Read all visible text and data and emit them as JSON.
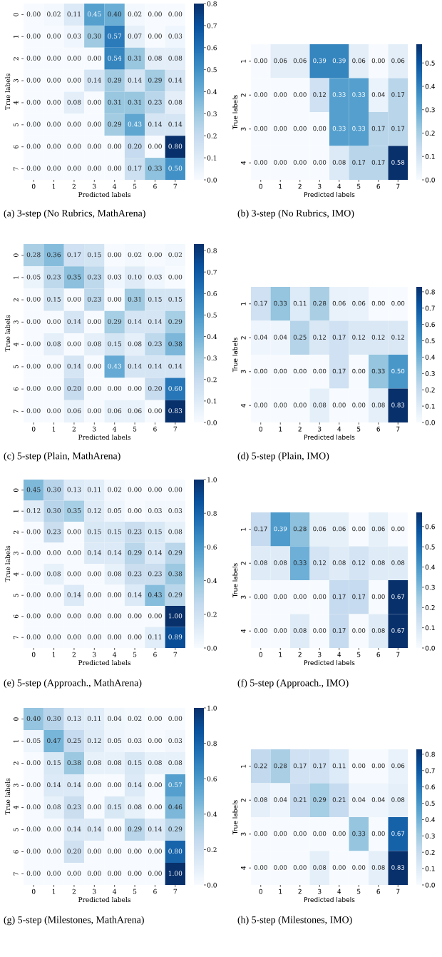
{
  "chart_data": [
    {
      "type": "heatmap",
      "xlabel": "Predicted labels",
      "ylabel": "True labels",
      "categories": [
        "0",
        "1",
        "2",
        "3",
        "4",
        "5",
        "6",
        "7"
      ],
      "y_categories": [
        "0",
        "1",
        "2",
        "3",
        "4",
        "5",
        "6",
        "7"
      ],
      "cells": [
        [
          0,
          0.02,
          0.11,
          0.45,
          0.4,
          0.02,
          0,
          0
        ],
        [
          0,
          0,
          0.03,
          0.3,
          0.57,
          0.07,
          0,
          0.03
        ],
        [
          0,
          0,
          0,
          0,
          0.54,
          0.31,
          0.08,
          0.08
        ],
        [
          0,
          0,
          0,
          0.14,
          0.29,
          0.14,
          0.29,
          0.14
        ],
        [
          0,
          0,
          0.08,
          0,
          0.31,
          0.31,
          0.23,
          0.08
        ],
        [
          0,
          0,
          0,
          0,
          0.29,
          0.43,
          0.14,
          0.14
        ],
        [
          0,
          0,
          0,
          0,
          0,
          0.2,
          0,
          0.8
        ],
        [
          0,
          0,
          0,
          0,
          0,
          0.17,
          0.33,
          0.5
        ]
      ],
      "cell_labels": [
        [
          "0.00",
          "0.02",
          "0.11",
          "0.45",
          "0.40",
          "0.02",
          "0.00",
          "0.00"
        ],
        [
          "0.00",
          "0.00",
          "0.03",
          "0.30",
          "0.57",
          "0.07",
          "0.00",
          "0.03"
        ],
        [
          "0.00",
          "0.00",
          "0.00",
          "0.00",
          "0.54",
          "0.31",
          "0.08",
          "0.08"
        ],
        [
          "0.00",
          "0.00",
          "0.00",
          "0.14",
          "0.29",
          "0.14",
          "0.29",
          "0.14"
        ],
        [
          "0.00",
          "0.00",
          "0.08",
          "0.00",
          "0.31",
          "0.31",
          "0.23",
          "0.08"
        ],
        [
          "0.00",
          "0.00",
          "0.00",
          "0.00",
          "0.29",
          "0.43",
          "0.14",
          "0.14"
        ],
        [
          "0.00",
          "0.00",
          "0.00",
          "0.00",
          "0.00",
          "0.20",
          "0.00",
          "0.80"
        ],
        [
          "0.00",
          "0.00",
          "0.00",
          "0.00",
          "0.00",
          "0.17",
          "0.33",
          "0.50"
        ]
      ],
      "clim": [
        0,
        0.8
      ],
      "cticks": [
        {
          "value": 0,
          "label": "0.0"
        },
        {
          "value": 0.1,
          "label": "0.1"
        },
        {
          "value": 0.2,
          "label": "0.2"
        },
        {
          "value": 0.3,
          "label": "0.3"
        },
        {
          "value": 0.4,
          "label": "0.4"
        },
        {
          "value": 0.5,
          "label": "0.5"
        },
        {
          "value": 0.6,
          "label": "0.6"
        },
        {
          "value": 0.7,
          "label": "0.7"
        },
        {
          "value": 0.8,
          "label": "0.8"
        }
      ],
      "annotations": [
        "(a) 3-step (No Rubrics, MathArena)"
      ]
    },
    {
      "type": "heatmap",
      "xlabel": "Predicted labels",
      "ylabel": "True labels",
      "categories": [
        "0",
        "1",
        "2",
        "3",
        "4",
        "5",
        "6",
        "7"
      ],
      "y_categories": [
        "1",
        "2",
        "3",
        "4"
      ],
      "cells": [
        [
          0,
          0.06,
          0.06,
          0.39,
          0.39,
          0.06,
          0,
          0.06
        ],
        [
          0,
          0,
          0,
          0.12,
          0.33,
          0.33,
          0.04,
          0.17
        ],
        [
          0,
          0,
          0,
          0,
          0.33,
          0.33,
          0.17,
          0.17
        ],
        [
          0,
          0,
          0,
          0,
          0.08,
          0.17,
          0.17,
          0.58
        ]
      ],
      "cell_labels": [
        [
          "0.00",
          "0.06",
          "0.06",
          "0.39",
          "0.39",
          "0.06",
          "0.00",
          "0.06"
        ],
        [
          "0.00",
          "0.00",
          "0.00",
          "0.12",
          "0.33",
          "0.33",
          "0.04",
          "0.17"
        ],
        [
          "0.00",
          "0.00",
          "0.00",
          "0.00",
          "0.33",
          "0.33",
          "0.17",
          "0.17"
        ],
        [
          "0.00",
          "0.00",
          "0.00",
          "0.00",
          "0.08",
          "0.17",
          "0.17",
          "0.58"
        ]
      ],
      "clim": [
        0,
        0.58
      ],
      "cticks": [
        {
          "value": 0,
          "label": "0.0"
        },
        {
          "value": 0.1,
          "label": "0.1"
        },
        {
          "value": 0.2,
          "label": "0.2"
        },
        {
          "value": 0.3,
          "label": "0.3"
        },
        {
          "value": 0.4,
          "label": "0.4"
        },
        {
          "value": 0.5,
          "label": "0.5"
        }
      ],
      "annotations": [
        "(b) 3-step (No Rubrics, IMO)"
      ]
    },
    {
      "type": "heatmap",
      "xlabel": "Predicted labels",
      "ylabel": "True labels",
      "categories": [
        "0",
        "1",
        "2",
        "3",
        "4",
        "5",
        "6",
        "7"
      ],
      "y_categories": [
        "0",
        "1",
        "2",
        "3",
        "4",
        "5",
        "6",
        "7"
      ],
      "cells": [
        [
          0.28,
          0.36,
          0.17,
          0.15,
          0,
          0.02,
          0,
          0.02
        ],
        [
          0.05,
          0.23,
          0.35,
          0.23,
          0.03,
          0.1,
          0.03,
          0
        ],
        [
          0,
          0.15,
          0,
          0.23,
          0,
          0.31,
          0.15,
          0.15
        ],
        [
          0,
          0,
          0.14,
          0,
          0.29,
          0.14,
          0.14,
          0.29
        ],
        [
          0,
          0.08,
          0,
          0.08,
          0.15,
          0.08,
          0.23,
          0.38
        ],
        [
          0,
          0,
          0.14,
          0,
          0.43,
          0.14,
          0.14,
          0.14
        ],
        [
          0,
          0,
          0.2,
          0,
          0,
          0,
          0.2,
          0.6
        ],
        [
          0,
          0,
          0.06,
          0,
          0.06,
          0.06,
          0,
          0.83
        ]
      ],
      "cell_labels": [
        [
          "0.28",
          "0.36",
          "0.17",
          "0.15",
          "0.00",
          "0.02",
          "0.00",
          "0.02"
        ],
        [
          "0.05",
          "0.23",
          "0.35",
          "0.23",
          "0.03",
          "0.10",
          "0.03",
          "0.00"
        ],
        [
          "0.00",
          "0.15",
          "0.00",
          "0.23",
          "0.00",
          "0.31",
          "0.15",
          "0.15"
        ],
        [
          "0.00",
          "0.00",
          "0.14",
          "0.00",
          "0.29",
          "0.14",
          "0.14",
          "0.29"
        ],
        [
          "0.00",
          "0.08",
          "0.00",
          "0.08",
          "0.15",
          "0.08",
          "0.23",
          "0.38"
        ],
        [
          "0.00",
          "0.00",
          "0.14",
          "0.00",
          "0.43",
          "0.14",
          "0.14",
          "0.14"
        ],
        [
          "0.00",
          "0.00",
          "0.20",
          "0.00",
          "0.00",
          "0.00",
          "0.20",
          "0.60"
        ],
        [
          "0.00",
          "0.00",
          "0.06",
          "0.00",
          "0.06",
          "0.06",
          "0.00",
          "0.83"
        ]
      ],
      "clim": [
        0,
        0.83
      ],
      "cticks": [
        {
          "value": 0,
          "label": "0.0"
        },
        {
          "value": 0.1,
          "label": "0.1"
        },
        {
          "value": 0.2,
          "label": "0.2"
        },
        {
          "value": 0.3,
          "label": "0.3"
        },
        {
          "value": 0.4,
          "label": "0.4"
        },
        {
          "value": 0.5,
          "label": "0.5"
        },
        {
          "value": 0.6,
          "label": "0.6"
        },
        {
          "value": 0.7,
          "label": "0.7"
        },
        {
          "value": 0.8,
          "label": "0.8"
        }
      ],
      "annotations": [
        "(c) 5-step (Plain, MathArena)"
      ]
    },
    {
      "type": "heatmap",
      "xlabel": "Predicted labels",
      "ylabel": "True labels",
      "categories": [
        "0",
        "1",
        "2",
        "3",
        "4",
        "5",
        "6",
        "7"
      ],
      "y_categories": [
        "1",
        "2",
        "3",
        "4"
      ],
      "cells": [
        [
          0.17,
          0.33,
          0.11,
          0.28,
          0.06,
          0.06,
          0,
          0
        ],
        [
          0.04,
          0.04,
          0.25,
          0.12,
          0.17,
          0.12,
          0.12,
          0.12
        ],
        [
          0,
          0,
          0,
          0,
          0.17,
          0,
          0.33,
          0.5
        ],
        [
          0,
          0,
          0,
          0.08,
          0,
          0,
          0.08,
          0.83
        ]
      ],
      "cell_labels": [
        [
          "0.17",
          "0.33",
          "0.11",
          "0.28",
          "0.06",
          "0.06",
          "0.00",
          "0.00"
        ],
        [
          "0.04",
          "0.04",
          "0.25",
          "0.12",
          "0.17",
          "0.12",
          "0.12",
          "0.12"
        ],
        [
          "0.00",
          "0.00",
          "0.00",
          "0.00",
          "0.17",
          "0.00",
          "0.33",
          "0.50"
        ],
        [
          "0.00",
          "0.00",
          "0.00",
          "0.08",
          "0.00",
          "0.00",
          "0.08",
          "0.83"
        ]
      ],
      "clim": [
        0,
        0.83
      ],
      "cticks": [
        {
          "value": 0,
          "label": "0.0"
        },
        {
          "value": 0.1,
          "label": "0.1"
        },
        {
          "value": 0.2,
          "label": "0.2"
        },
        {
          "value": 0.3,
          "label": "0.3"
        },
        {
          "value": 0.4,
          "label": "0.4"
        },
        {
          "value": 0.5,
          "label": "0.5"
        },
        {
          "value": 0.6,
          "label": "0.6"
        },
        {
          "value": 0.7,
          "label": "0.7"
        },
        {
          "value": 0.8,
          "label": "0.8"
        }
      ],
      "annotations": [
        "(d) 5-step (Plain, IMO)"
      ]
    },
    {
      "type": "heatmap",
      "xlabel": "Predicted labels",
      "ylabel": "True labels",
      "categories": [
        "0",
        "1",
        "2",
        "3",
        "4",
        "5",
        "6",
        "7"
      ],
      "y_categories": [
        "0",
        "1",
        "2",
        "3",
        "4",
        "5",
        "6",
        "7"
      ],
      "cells": [
        [
          0.45,
          0.3,
          0.13,
          0.11,
          0.02,
          0,
          0,
          0
        ],
        [
          0.12,
          0.3,
          0.35,
          0.12,
          0.05,
          0,
          0.03,
          0.03
        ],
        [
          0,
          0.23,
          0,
          0.15,
          0.15,
          0.23,
          0.15,
          0.08
        ],
        [
          0,
          0,
          0,
          0.14,
          0.14,
          0.29,
          0.14,
          0.29
        ],
        [
          0,
          0.08,
          0,
          0,
          0.08,
          0.23,
          0.23,
          0.38
        ],
        [
          0,
          0,
          0.14,
          0,
          0,
          0.14,
          0.43,
          0.29
        ],
        [
          0,
          0,
          0,
          0,
          0,
          0,
          0,
          1.0
        ],
        [
          0,
          0,
          0,
          0,
          0,
          0,
          0.11,
          0.89
        ]
      ],
      "cell_labels": [
        [
          "0.45",
          "0.30",
          "0.13",
          "0.11",
          "0.02",
          "0.00",
          "0.00",
          "0.00"
        ],
        [
          "0.12",
          "0.30",
          "0.35",
          "0.12",
          "0.05",
          "0.00",
          "0.03",
          "0.03"
        ],
        [
          "0.00",
          "0.23",
          "0.00",
          "0.15",
          "0.15",
          "0.23",
          "0.15",
          "0.08"
        ],
        [
          "0.00",
          "0.00",
          "0.00",
          "0.14",
          "0.14",
          "0.29",
          "0.14",
          "0.29"
        ],
        [
          "0.00",
          "0.08",
          "0.00",
          "0.00",
          "0.08",
          "0.23",
          "0.23",
          "0.38"
        ],
        [
          "0.00",
          "0.00",
          "0.14",
          "0.00",
          "0.00",
          "0.14",
          "0.43",
          "0.29"
        ],
        [
          "0.00",
          "0.00",
          "0.00",
          "0.00",
          "0.00",
          "0.00",
          "0.00",
          "1.00"
        ],
        [
          "0.00",
          "0.00",
          "0.00",
          "0.00",
          "0.00",
          "0.00",
          "0.11",
          "0.89"
        ]
      ],
      "clim": [
        0,
        1.0
      ],
      "cticks": [
        {
          "value": 0,
          "label": "0.0"
        },
        {
          "value": 0.2,
          "label": "0.2"
        },
        {
          "value": 0.4,
          "label": "0.4"
        },
        {
          "value": 0.6,
          "label": "0.6"
        },
        {
          "value": 0.8,
          "label": "0.8"
        },
        {
          "value": 1.0,
          "label": "1.0"
        }
      ],
      "annotations": [
        "(e) 5-step (Approach., MathArena)"
      ]
    },
    {
      "type": "heatmap",
      "xlabel": "Predicted labels",
      "ylabel": "True labels",
      "categories": [
        "0",
        "1",
        "2",
        "3",
        "4",
        "5",
        "6",
        "7"
      ],
      "y_categories": [
        "1",
        "2",
        "3",
        "4"
      ],
      "cells": [
        [
          0.17,
          0.39,
          0.28,
          0.06,
          0.06,
          0,
          0.06,
          0
        ],
        [
          0.08,
          0.08,
          0.33,
          0.12,
          0.08,
          0.12,
          0.08,
          0.08
        ],
        [
          0,
          0,
          0,
          0,
          0.17,
          0.17,
          0,
          0.67
        ],
        [
          0,
          0,
          0.08,
          0,
          0.17,
          0,
          0.08,
          0.67
        ]
      ],
      "cell_labels": [
        [
          "0.17",
          "0.39",
          "0.28",
          "0.06",
          "0.06",
          "0.00",
          "0.06",
          "0.00"
        ],
        [
          "0.08",
          "0.08",
          "0.33",
          "0.12",
          "0.08",
          "0.12",
          "0.08",
          "0.08"
        ],
        [
          "0.00",
          "0.00",
          "0.00",
          "0.00",
          "0.17",
          "0.17",
          "0.00",
          "0.67"
        ],
        [
          "0.00",
          "0.00",
          "0.08",
          "0.00",
          "0.17",
          "0.00",
          "0.08",
          "0.67"
        ]
      ],
      "clim": [
        0,
        0.67
      ],
      "cticks": [
        {
          "value": 0,
          "label": "0.0"
        },
        {
          "value": 0.1,
          "label": "0.1"
        },
        {
          "value": 0.2,
          "label": "0.2"
        },
        {
          "value": 0.3,
          "label": "0.3"
        },
        {
          "value": 0.4,
          "label": "0.4"
        },
        {
          "value": 0.5,
          "label": "0.5"
        },
        {
          "value": 0.6,
          "label": "0.6"
        }
      ],
      "annotations": [
        "(f) 5-step (Approach., IMO)"
      ]
    },
    {
      "type": "heatmap",
      "xlabel": "Predicted labels",
      "ylabel": "True labels",
      "categories": [
        "0",
        "1",
        "2",
        "3",
        "4",
        "5",
        "6",
        "7"
      ],
      "y_categories": [
        "0",
        "1",
        "2",
        "3",
        "4",
        "5",
        "6",
        "7"
      ],
      "cells": [
        [
          0.4,
          0.3,
          0.13,
          0.11,
          0.04,
          0.02,
          0,
          0
        ],
        [
          0.05,
          0.47,
          0.25,
          0.12,
          0.05,
          0.03,
          0,
          0.03
        ],
        [
          0,
          0.15,
          0.38,
          0.08,
          0.08,
          0.15,
          0.08,
          0.08
        ],
        [
          0,
          0.14,
          0.14,
          0,
          0,
          0.14,
          0,
          0.57
        ],
        [
          0,
          0.08,
          0.23,
          0,
          0.15,
          0.08,
          0,
          0.46
        ],
        [
          0,
          0,
          0.14,
          0.14,
          0,
          0.29,
          0.14,
          0.29
        ],
        [
          0,
          0,
          0.2,
          0,
          0,
          0,
          0,
          0.8
        ],
        [
          0,
          0,
          0,
          0,
          0,
          0,
          0,
          1.0
        ]
      ],
      "cell_labels": [
        [
          "0.40",
          "0.30",
          "0.13",
          "0.11",
          "0.04",
          "0.02",
          "0.00",
          "0.00"
        ],
        [
          "0.05",
          "0.47",
          "0.25",
          "0.12",
          "0.05",
          "0.03",
          "0.00",
          "0.03"
        ],
        [
          "0.00",
          "0.15",
          "0.38",
          "0.08",
          "0.08",
          "0.15",
          "0.08",
          "0.08"
        ],
        [
          "0.00",
          "0.14",
          "0.14",
          "0.00",
          "0.00",
          "0.14",
          "0.00",
          "0.57"
        ],
        [
          "0.00",
          "0.08",
          "0.23",
          "0.00",
          "0.15",
          "0.08",
          "0.00",
          "0.46"
        ],
        [
          "0.00",
          "0.00",
          "0.14",
          "0.14",
          "0.00",
          "0.29",
          "0.14",
          "0.29"
        ],
        [
          "0.00",
          "0.00",
          "0.20",
          "0.00",
          "0.00",
          "0.00",
          "0.00",
          "0.80"
        ],
        [
          "0.00",
          "0.00",
          "0.00",
          "0.00",
          "0.00",
          "0.00",
          "0.00",
          "1.00"
        ]
      ],
      "clim": [
        0,
        1.0
      ],
      "cticks": [
        {
          "value": 0,
          "label": "0.0"
        },
        {
          "value": 0.2,
          "label": "0.2"
        },
        {
          "value": 0.4,
          "label": "0.4"
        },
        {
          "value": 0.6,
          "label": "0.6"
        },
        {
          "value": 0.8,
          "label": "0.8"
        },
        {
          "value": 1.0,
          "label": "1.0"
        }
      ],
      "annotations": [
        "(g) 5-step (Milestones, MathArena)"
      ]
    },
    {
      "type": "heatmap",
      "xlabel": "Predicted labels",
      "ylabel": "True labels",
      "categories": [
        "0",
        "1",
        "2",
        "3",
        "4",
        "5",
        "6",
        "7"
      ],
      "y_categories": [
        "1",
        "2",
        "3",
        "4"
      ],
      "cells": [
        [
          0.22,
          0.28,
          0.17,
          0.17,
          0.11,
          0,
          0,
          0.06
        ],
        [
          0.08,
          0.04,
          0.21,
          0.29,
          0.21,
          0.04,
          0.04,
          0.08
        ],
        [
          0,
          0,
          0,
          0,
          0,
          0.33,
          0,
          0.67
        ],
        [
          0,
          0,
          0,
          0.08,
          0,
          0,
          0.08,
          0.83
        ]
      ],
      "cell_labels": [
        [
          "0.22",
          "0.28",
          "0.17",
          "0.17",
          "0.11",
          "0.00",
          "0.00",
          "0.06"
        ],
        [
          "0.08",
          "0.04",
          "0.21",
          "0.29",
          "0.21",
          "0.04",
          "0.04",
          "0.08"
        ],
        [
          "0.00",
          "0.00",
          "0.00",
          "0.00",
          "0.00",
          "0.33",
          "0.00",
          "0.67"
        ],
        [
          "0.00",
          "0.00",
          "0.00",
          "0.08",
          "0.00",
          "0.00",
          "0.08",
          "0.83"
        ]
      ],
      "clim": [
        0,
        0.83
      ],
      "cticks": [
        {
          "value": 0,
          "label": "0.0"
        },
        {
          "value": 0.1,
          "label": "0.1"
        },
        {
          "value": 0.2,
          "label": "0.2"
        },
        {
          "value": 0.3,
          "label": "0.3"
        },
        {
          "value": 0.4,
          "label": "0.4"
        },
        {
          "value": 0.5,
          "label": "0.5"
        },
        {
          "value": 0.6,
          "label": "0.6"
        },
        {
          "value": 0.7,
          "label": "0.7"
        },
        {
          "value": 0.8,
          "label": "0.8"
        }
      ],
      "annotations": [
        "(h) 5-step (Milestones, IMO)"
      ]
    }
  ]
}
